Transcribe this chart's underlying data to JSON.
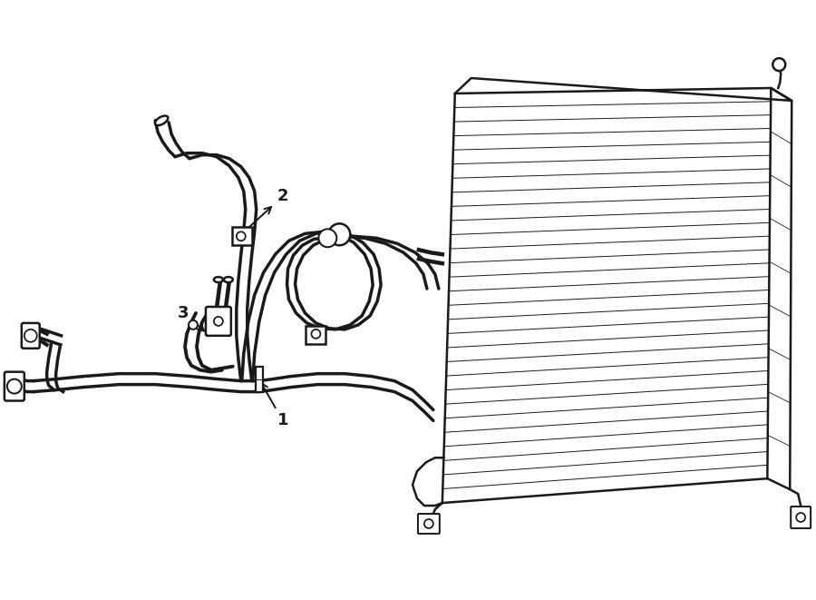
{
  "bg_color": "#ffffff",
  "line_color": "#1a1a1a",
  "lw_main": 1.8,
  "lw_tube": 2.5,
  "lw_thin": 0.9,
  "label_fontsize": 13,
  "dpi": 100,
  "fig_width": 9.0,
  "fig_height": 6.61
}
